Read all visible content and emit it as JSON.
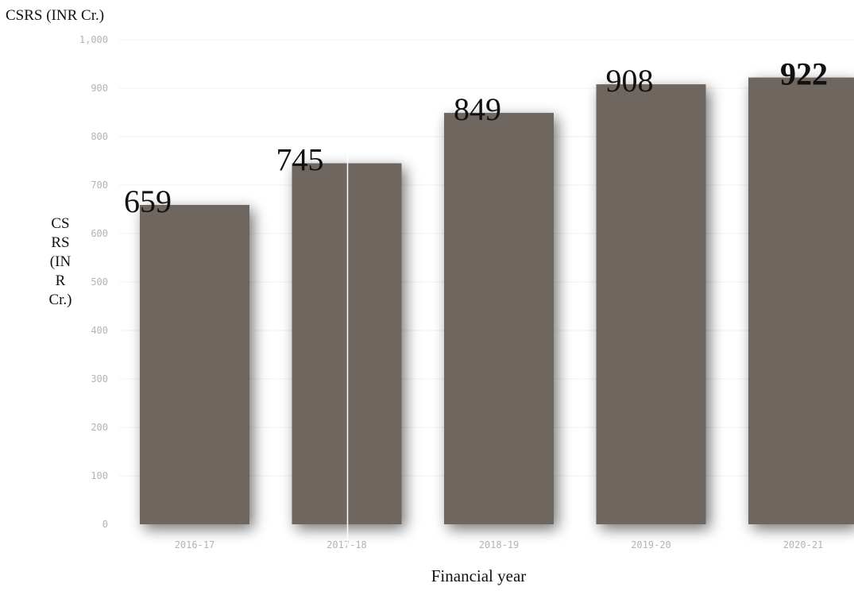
{
  "chart_data": {
    "type": "bar",
    "title": "CSRS (INR Cr.)",
    "xlabel": "Financial year",
    "ylabel_lines": [
      "CS",
      "RS",
      "(IN",
      "R",
      "Cr.)"
    ],
    "categories": [
      "2016-17",
      "2017-18",
      "2018-19",
      "2019-20",
      "2020-21"
    ],
    "values": [
      659,
      745,
      849,
      908,
      922
    ],
    "data_labels": [
      "659",
      "745",
      "849",
      "908",
      "922"
    ],
    "emphasized_label_index": 4,
    "ylim": [
      0,
      1000
    ],
    "yticks": [
      0,
      100,
      200,
      300,
      400,
      500,
      600,
      700,
      800,
      900,
      1000
    ],
    "ytick_labels": [
      "0",
      "100",
      "200",
      "300",
      "400",
      "500",
      "600",
      "700",
      "800",
      "900",
      "1,000"
    ],
    "grid": true,
    "legend": "none",
    "colors": {
      "bar": "#6f6661",
      "tick": "#b3b3b3",
      "grid": "#f0f0f0"
    }
  }
}
